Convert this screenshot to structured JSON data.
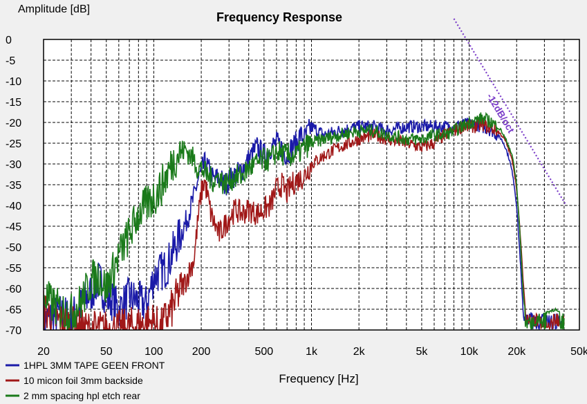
{
  "chart_data": {
    "type": "line",
    "title": "Frequency Response",
    "xlabel": "Frequency [Hz]",
    "ylabel": "Amplitude [dB]",
    "x_scale": "log",
    "xlim": [
      20,
      50000
    ],
    "ylim": [
      -70,
      0
    ],
    "grid": true,
    "legend_position": "bottom-left",
    "x_ticks": [
      {
        "value": 20,
        "label": "20"
      },
      {
        "value": 50,
        "label": "50"
      },
      {
        "value": 100,
        "label": "100"
      },
      {
        "value": 200,
        "label": "200"
      },
      {
        "value": 500,
        "label": "500"
      },
      {
        "value": 1000,
        "label": "1k"
      },
      {
        "value": 2000,
        "label": "2k"
      },
      {
        "value": 5000,
        "label": "5k"
      },
      {
        "value": 10000,
        "label": "10k"
      },
      {
        "value": 20000,
        "label": "20k"
      },
      {
        "value": 50000,
        "label": "50k"
      }
    ],
    "y_ticks": [
      {
        "value": 0,
        "label": "0"
      },
      {
        "value": -5,
        "label": "-5"
      },
      {
        "value": -10,
        "label": "-10"
      },
      {
        "value": -15,
        "label": "-15"
      },
      {
        "value": -20,
        "label": "-20"
      },
      {
        "value": -25,
        "label": "-25"
      },
      {
        "value": -30,
        "label": "-30"
      },
      {
        "value": -35,
        "label": "-35"
      },
      {
        "value": -40,
        "label": "-40"
      },
      {
        "value": -45,
        "label": "-45"
      },
      {
        "value": -50,
        "label": "-50"
      },
      {
        "value": -55,
        "label": "-55"
      },
      {
        "value": -60,
        "label": "-60"
      },
      {
        "value": -65,
        "label": "-65"
      },
      {
        "value": -70,
        "label": "-70"
      }
    ],
    "series": [
      {
        "name": "1HPL 3MM TAPE GEEN FRONT",
        "color": "#1a1aa8",
        "x": [
          20,
          25,
          30,
          35,
          40,
          45,
          50,
          55,
          60,
          70,
          80,
          90,
          100,
          110,
          120,
          140,
          160,
          180,
          190,
          200,
          210,
          220,
          240,
          260,
          280,
          300,
          320,
          350,
          400,
          450,
          500,
          550,
          600,
          650,
          700,
          750,
          800,
          850,
          900,
          1000,
          1200,
          1500,
          2000,
          2500,
          3000,
          4000,
          5000,
          6000,
          7000,
          8000,
          9000,
          10000,
          11000,
          12000,
          13000,
          14000,
          15000,
          16000,
          17000,
          18000,
          19000,
          20000,
          21000,
          22000,
          23000,
          24000,
          25000,
          27000,
          30000,
          35000,
          40000
        ],
        "y": [
          -68,
          -66,
          -67,
          -64,
          -61,
          -58,
          -62,
          -63,
          -65,
          -62,
          -63,
          -64,
          -57,
          -56,
          -55,
          -49,
          -44,
          -38,
          -34,
          -32,
          -30,
          -31,
          -34,
          -33,
          -35,
          -34,
          -33,
          -32,
          -29,
          -26,
          -28,
          -26,
          -25,
          -26,
          -28,
          -26,
          -25,
          -23,
          -24,
          -21,
          -23,
          -22,
          -21,
          -21,
          -22,
          -21,
          -21,
          -21,
          -21,
          -21,
          -20.5,
          -20.5,
          -20.5,
          -21,
          -21.5,
          -22,
          -23,
          -24,
          -26,
          -29,
          -33,
          -40,
          -52,
          -66,
          -70,
          -70,
          -70,
          -70,
          -70,
          -70,
          -70
        ]
      },
      {
        "name": "10 micon foil 3mm backside",
        "color": "#a01818",
        "x": [
          20,
          25,
          30,
          35,
          40,
          45,
          50,
          55,
          60,
          100,
          110,
          120,
          130,
          140,
          160,
          180,
          190,
          200,
          210,
          220,
          230,
          240,
          260,
          280,
          300,
          330,
          360,
          400,
          450,
          500,
          550,
          600,
          650,
          700,
          750,
          800,
          900,
          1000,
          1200,
          1500,
          2000,
          2500,
          3000,
          4000,
          5000,
          6000,
          7000,
          8000,
          9000,
          10000,
          11000,
          12000,
          13000,
          14000,
          15000,
          16000,
          17000,
          18000,
          19000,
          20000,
          21000,
          22000,
          23000,
          24000,
          25000,
          30000,
          40000
        ],
        "y": [
          -65,
          -68,
          -69,
          -70,
          -70,
          -70,
          -70,
          -70,
          -70,
          -68,
          -70,
          -67,
          -65,
          -62,
          -58,
          -53,
          -44,
          -37,
          -34,
          -38,
          -42,
          -44,
          -47,
          -45,
          -43,
          -41,
          -42,
          -41,
          -42,
          -41,
          -40,
          -36,
          -35,
          -37,
          -35,
          -34,
          -33,
          -30,
          -28,
          -26,
          -24,
          -23,
          -24,
          -25,
          -26,
          -25,
          -23,
          -22,
          -21,
          -21,
          -21,
          -20.5,
          -21,
          -21.5,
          -22,
          -23,
          -24.5,
          -27,
          -30,
          -36,
          -46,
          -58,
          -68,
          -70,
          -70,
          -70,
          -70
        ]
      },
      {
        "name": "2 mm spacing hpl etch rear",
        "color": "#1a7a1a",
        "x": [
          20,
          25,
          30,
          35,
          40,
          45,
          50,
          55,
          60,
          70,
          80,
          90,
          100,
          110,
          120,
          130,
          140,
          150,
          160,
          170,
          180,
          190,
          200,
          220,
          240,
          260,
          280,
          300,
          330,
          360,
          400,
          450,
          500,
          550,
          600,
          700,
          800,
          900,
          1000,
          1200,
          1500,
          2000,
          2500,
          3000,
          4000,
          5000,
          6000,
          7000,
          8000,
          9000,
          10000,
          11000,
          12000,
          13000,
          14000,
          15000,
          16000,
          17000,
          18000,
          19000,
          20000,
          21000,
          22000,
          23000,
          24000,
          27000,
          30000,
          35000,
          40000
        ],
        "y": [
          -62,
          -65,
          -66,
          -63,
          -58,
          -57,
          -60,
          -56,
          -52,
          -47,
          -42,
          -40,
          -38,
          -36,
          -33,
          -30,
          -28,
          -27,
          -26.5,
          -28,
          -29,
          -31,
          -31,
          -33,
          -34,
          -33,
          -35,
          -34,
          -33,
          -33,
          -31,
          -30,
          -29,
          -29,
          -27,
          -28,
          -28,
          -26,
          -25,
          -24,
          -23,
          -22,
          -22,
          -23,
          -24,
          -24,
          -23,
          -23,
          -22,
          -21,
          -20,
          -19.5,
          -19,
          -19.5,
          -20,
          -21,
          -22,
          -24,
          -26,
          -29,
          -35,
          -47,
          -61,
          -68,
          -69,
          -67,
          -66,
          -65,
          -67
        ]
      }
    ],
    "annotations": [
      {
        "text": "-12dB/oct",
        "color": "#7a3cc8",
        "from": {
          "x": 8000,
          "y": 0
        },
        "to": {
          "x": 48000,
          "y": -40
        }
      }
    ]
  }
}
